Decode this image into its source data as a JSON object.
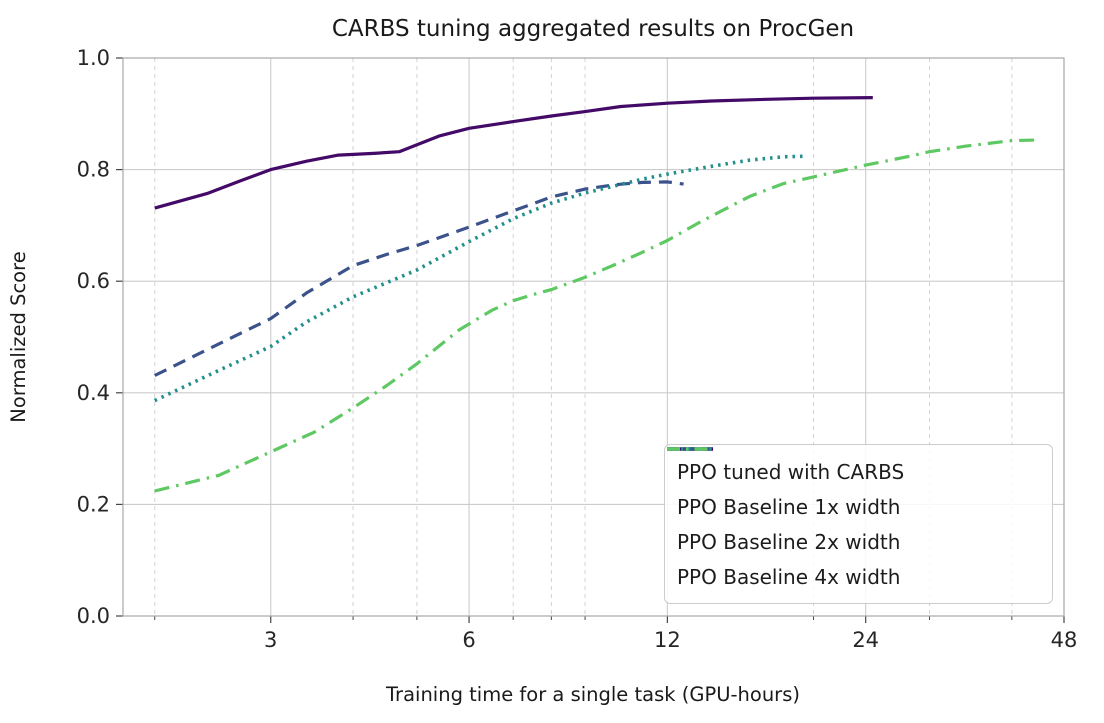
{
  "chart_data": {
    "type": "line",
    "title": "CARBS tuning aggregated results on ProcGen",
    "xlabel": "Training time for a single task (GPU-hours)",
    "ylabel": "Normalized Score",
    "x_scale": "log",
    "xlim": [
      1.79,
      48
    ],
    "ylim": [
      0.0,
      1.0
    ],
    "grid": true,
    "legend_position": "lower right",
    "x_ticks": [
      {
        "value": 3,
        "label": "3"
      },
      {
        "value": 6,
        "label": "6"
      },
      {
        "value": 12,
        "label": "12"
      },
      {
        "value": 24,
        "label": "24"
      },
      {
        "value": 48,
        "label": "48"
      }
    ],
    "x_minor_gridlines": [
      2,
      4,
      5,
      7,
      8,
      9,
      20,
      30,
      40
    ],
    "y_ticks": [
      {
        "value": 0.0,
        "label": "0.0"
      },
      {
        "value": 0.2,
        "label": "0.2"
      },
      {
        "value": 0.4,
        "label": "0.4"
      },
      {
        "value": 0.6,
        "label": "0.6"
      },
      {
        "value": 0.8,
        "label": "0.8"
      },
      {
        "value": 1.0,
        "label": "1.0"
      }
    ],
    "colors": {
      "grid_major": "#cccccc",
      "grid_minor": "#d2d2d2",
      "spine": "#a8a8a8",
      "tick": "#444444",
      "text": "#1a1a1a"
    },
    "series": [
      {
        "name": "PPO tuned with CARBS",
        "color": "#440a68",
        "line_style": "solid",
        "points": [
          [
            2.0,
            0.731
          ],
          [
            2.4,
            0.757
          ],
          [
            2.7,
            0.78
          ],
          [
            3.0,
            0.8
          ],
          [
            3.4,
            0.815
          ],
          [
            3.8,
            0.826
          ],
          [
            4.3,
            0.829
          ],
          [
            4.7,
            0.832
          ],
          [
            5.4,
            0.86
          ],
          [
            6.0,
            0.874
          ],
          [
            7.0,
            0.886
          ],
          [
            8.0,
            0.896
          ],
          [
            9.0,
            0.904
          ],
          [
            10.2,
            0.913
          ],
          [
            12.0,
            0.919
          ],
          [
            14.0,
            0.923
          ],
          [
            17.0,
            0.926
          ],
          [
            20.0,
            0.928
          ],
          [
            24.6,
            0.929
          ]
        ]
      },
      {
        "name": "PPO Baseline 1x width",
        "color": "#3b528b",
        "line_style": "dashed",
        "points": [
          [
            2.0,
            0.431
          ],
          [
            2.4,
            0.477
          ],
          [
            3.0,
            0.533
          ],
          [
            3.4,
            0.579
          ],
          [
            4.0,
            0.628
          ],
          [
            4.5,
            0.648
          ],
          [
            5.0,
            0.664
          ],
          [
            6.0,
            0.697
          ],
          [
            7.0,
            0.726
          ],
          [
            8.0,
            0.751
          ],
          [
            9.0,
            0.765
          ],
          [
            10.0,
            0.773
          ],
          [
            11.0,
            0.777
          ],
          [
            12.0,
            0.778
          ],
          [
            12.7,
            0.774
          ]
        ]
      },
      {
        "name": "PPO Baseline 2x width",
        "color": "#21908c",
        "line_style": "dotted",
        "points": [
          [
            2.0,
            0.386
          ],
          [
            2.5,
            0.44
          ],
          [
            3.0,
            0.483
          ],
          [
            3.4,
            0.527
          ],
          [
            4.0,
            0.572
          ],
          [
            5.0,
            0.62
          ],
          [
            6.0,
            0.671
          ],
          [
            7.0,
            0.712
          ],
          [
            8.0,
            0.74
          ],
          [
            9.0,
            0.758
          ],
          [
            10.0,
            0.771
          ],
          [
            11.0,
            0.783
          ],
          [
            12.0,
            0.792
          ],
          [
            14.0,
            0.806
          ],
          [
            16.0,
            0.817
          ],
          [
            18.0,
            0.823
          ],
          [
            19.5,
            0.824
          ]
        ]
      },
      {
        "name": "PPO Baseline 4x width",
        "color": "#5ec962",
        "line_style": "dashdot",
        "points": [
          [
            2.0,
            0.224
          ],
          [
            2.5,
            0.252
          ],
          [
            3.0,
            0.294
          ],
          [
            3.5,
            0.33
          ],
          [
            4.0,
            0.373
          ],
          [
            4.5,
            0.413
          ],
          [
            5.0,
            0.452
          ],
          [
            5.8,
            0.513
          ],
          [
            6.5,
            0.548
          ],
          [
            7.0,
            0.565
          ],
          [
            7.6,
            0.578
          ],
          [
            8.0,
            0.585
          ],
          [
            9.0,
            0.607
          ],
          [
            10.0,
            0.63
          ],
          [
            11.0,
            0.652
          ],
          [
            12.0,
            0.673
          ],
          [
            13.5,
            0.707
          ],
          [
            15.0,
            0.735
          ],
          [
            16.0,
            0.752
          ],
          [
            18.0,
            0.775
          ],
          [
            20.0,
            0.787
          ],
          [
            24.0,
            0.808
          ],
          [
            28.0,
            0.824
          ],
          [
            30.0,
            0.832
          ],
          [
            34.0,
            0.842
          ],
          [
            40.0,
            0.852
          ],
          [
            43.5,
            0.853
          ]
        ]
      }
    ]
  }
}
